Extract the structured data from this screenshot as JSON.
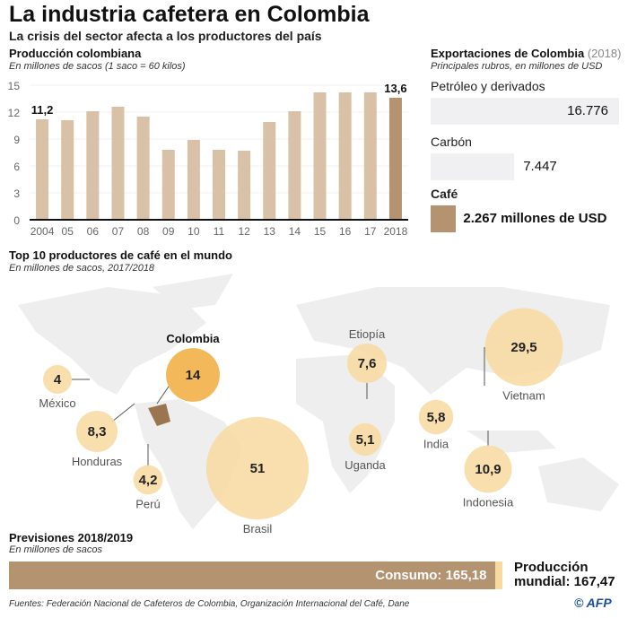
{
  "title": "La industria cafetera en Colombia",
  "subtitle": "La crisis del sector afecta a los productores del país",
  "production": {
    "title": "Producción colombiana",
    "note": "En millones de sacos (1 saco = 60 kilos)"
  },
  "exports": {
    "title": "Exportaciones de Colombia",
    "year": "(2018)",
    "note": "Principales rubros, en millones de USD",
    "items": [
      {
        "label": "Petróleo y derivados",
        "value": 16776,
        "display": "16.776",
        "color": "#f0f0f2"
      },
      {
        "label": "Carbón",
        "value": 7447,
        "display": "7.447",
        "color": "#f0f0f2"
      },
      {
        "label": "Café",
        "value": 2267,
        "display": "2.267 millones de USD",
        "color": "#b39370"
      }
    ]
  },
  "map": {
    "title": "Top 10 productores de café en el mundo",
    "note": "En millones de sacos, 2017/2018",
    "producers": [
      {
        "name": "México",
        "value": 4,
        "display": "4"
      },
      {
        "name": "Honduras",
        "value": 8.3,
        "display": "8,3"
      },
      {
        "name": "Perú",
        "value": 4.2,
        "display": "4,2"
      },
      {
        "name": "Colombia",
        "value": 14,
        "display": "14",
        "highlight": true
      },
      {
        "name": "Brasil",
        "value": 51,
        "display": "51"
      },
      {
        "name": "Etiopía",
        "value": 7.6,
        "display": "7,6"
      },
      {
        "name": "Uganda",
        "value": 5.1,
        "display": "5,1"
      },
      {
        "name": "India",
        "value": 5.8,
        "display": "5,8"
      },
      {
        "name": "Vietnam",
        "value": 29.5,
        "display": "29,5"
      },
      {
        "name": "Indonesia",
        "value": 10.9,
        "display": "10,9"
      }
    ],
    "colors": {
      "circle": "#f8d9a0",
      "highlight": "#f2b85a",
      "land": "#eeeeee",
      "producer_land": "#e6d4c0",
      "colombia_land": "#9b7550"
    }
  },
  "forecast": {
    "title": "Previsiones 2018/2019",
    "note": "En millones de sacos",
    "consumption_label": "Consumo: 165,18",
    "consumption": 165.18,
    "production_label_1": "Producción",
    "production_label_2": "mundial: 167,47",
    "production": 167.47
  },
  "footer": {
    "sources": "Fuentes: Federación Nacional de Cafeteros de Colombia, Organización Internacional del Café, Dane",
    "logo": "© AFP"
  },
  "chart_data": {
    "type": "bar",
    "title": "Producción colombiana",
    "categories": [
      "2004",
      "05",
      "06",
      "07",
      "08",
      "09",
      "10",
      "11",
      "12",
      "13",
      "14",
      "15",
      "16",
      "17",
      "2018"
    ],
    "values": [
      11.2,
      11.1,
      12.1,
      12.6,
      11.5,
      7.8,
      8.9,
      7.8,
      7.7,
      10.9,
      12.1,
      14.2,
      14.2,
      14.2,
      13.6
    ],
    "data_labels": {
      "2004": "11,2",
      "2018": "13,6"
    },
    "yticks": [
      0,
      3,
      6,
      9,
      12,
      15
    ],
    "ylim": [
      0,
      15
    ],
    "grid": true,
    "colors": {
      "bar": "#d8c1a7",
      "highlight": "#b39370"
    }
  }
}
